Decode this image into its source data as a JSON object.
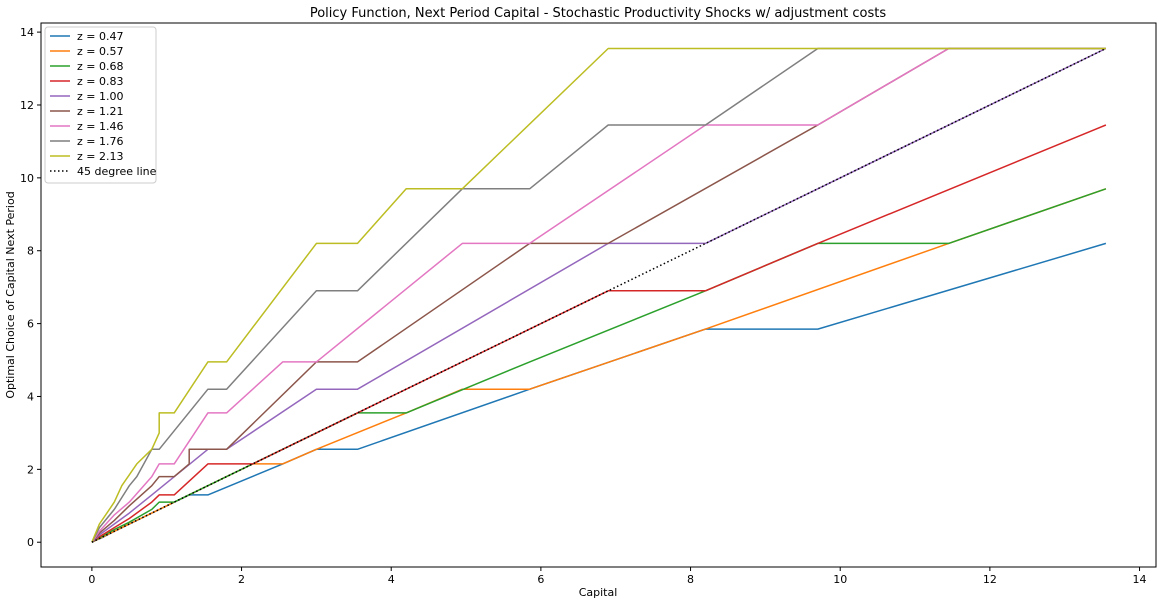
{
  "chart_data": {
    "type": "line",
    "title": "Policy Function, Next Period Capital - Stochastic Productivity Shocks w/ adjustment costs",
    "xlabel": "Capital",
    "ylabel": "Optimal Choice of Capital Next Period",
    "xlim": [
      -0.68,
      14.22
    ],
    "ylim": [
      -0.68,
      14.25
    ],
    "xticks": [
      0,
      2,
      4,
      6,
      8,
      10,
      12,
      14
    ],
    "yticks": [
      0,
      2,
      4,
      6,
      8,
      10,
      12,
      14
    ],
    "grid": false,
    "legend_position": "top-left",
    "series": [
      {
        "name": "z = 0.47",
        "color": "#1f77b4",
        "style": "solid",
        "points": [
          [
            0,
            0
          ],
          [
            0.06,
            0.06
          ],
          [
            0.14,
            0.13
          ],
          [
            0.3,
            0.3
          ],
          [
            0.45,
            0.45
          ],
          [
            0.6,
            0.6
          ],
          [
            0.8,
            0.8
          ],
          [
            1.3,
            1.3
          ],
          [
            1.55,
            1.3
          ],
          [
            2.55,
            2.15
          ],
          [
            3.0,
            2.55
          ],
          [
            3.55,
            2.55
          ],
          [
            5.85,
            4.2
          ],
          [
            8.2,
            5.85
          ],
          [
            9.7,
            5.85
          ],
          [
            13.55,
            8.2
          ]
        ]
      },
      {
        "name": "z = 0.57",
        "color": "#ff7f0e",
        "style": "solid",
        "points": [
          [
            0,
            0
          ],
          [
            0.1,
            0.1
          ],
          [
            0.3,
            0.3
          ],
          [
            0.5,
            0.5
          ],
          [
            0.8,
            0.8
          ],
          [
            1.55,
            1.55
          ],
          [
            1.8,
            1.8
          ],
          [
            2.15,
            2.15
          ],
          [
            2.55,
            2.15
          ],
          [
            3.0,
            2.55
          ],
          [
            4.2,
            3.55
          ],
          [
            4.95,
            4.2
          ],
          [
            5.85,
            4.2
          ],
          [
            8.2,
            5.85
          ],
          [
            11.45,
            8.2
          ],
          [
            13.55,
            9.7
          ]
        ]
      },
      {
        "name": "z = 0.68",
        "color": "#2ca02c",
        "style": "solid",
        "points": [
          [
            0,
            0
          ],
          [
            0.1,
            0.12
          ],
          [
            0.3,
            0.35
          ],
          [
            0.5,
            0.55
          ],
          [
            0.8,
            0.9
          ],
          [
            0.9,
            1.1
          ],
          [
            1.1,
            1.1
          ],
          [
            1.8,
            1.8
          ],
          [
            3.55,
            3.55
          ],
          [
            4.2,
            3.55
          ],
          [
            5.85,
            4.95
          ],
          [
            8.2,
            6.9
          ],
          [
            9.7,
            8.2
          ],
          [
            11.45,
            8.2
          ],
          [
            13.55,
            9.7
          ]
        ]
      },
      {
        "name": "z = 0.83",
        "color": "#d62728",
        "style": "solid",
        "points": [
          [
            0,
            0
          ],
          [
            0.1,
            0.15
          ],
          [
            0.3,
            0.4
          ],
          [
            0.5,
            0.65
          ],
          [
            0.8,
            1.1
          ],
          [
            0.9,
            1.3
          ],
          [
            1.1,
            1.3
          ],
          [
            1.55,
            2.15
          ],
          [
            1.8,
            2.15
          ],
          [
            2.15,
            2.15
          ],
          [
            4.2,
            4.2
          ],
          [
            5.85,
            5.85
          ],
          [
            6.9,
            6.9
          ],
          [
            8.2,
            6.9
          ],
          [
            9.7,
            8.2
          ],
          [
            13.55,
            11.45
          ]
        ]
      },
      {
        "name": "z = 1.00",
        "color": "#9467bd",
        "style": "solid",
        "points": [
          [
            0,
            0
          ],
          [
            0.1,
            0.2
          ],
          [
            0.3,
            0.5
          ],
          [
            0.5,
            0.8
          ],
          [
            0.8,
            1.3
          ],
          [
            1.55,
            2.55
          ],
          [
            1.8,
            2.55
          ],
          [
            3.0,
            4.2
          ],
          [
            3.55,
            4.2
          ],
          [
            6.9,
            8.2
          ],
          [
            8.2,
            8.2
          ],
          [
            9.7,
            9.7
          ],
          [
            13.55,
            13.55
          ]
        ]
      },
      {
        "name": "z = 1.21",
        "color": "#8c564b",
        "style": "solid",
        "points": [
          [
            0,
            0
          ],
          [
            0.1,
            0.25
          ],
          [
            0.3,
            0.6
          ],
          [
            0.5,
            1.0
          ],
          [
            0.8,
            1.55
          ],
          [
            0.9,
            1.8
          ],
          [
            1.1,
            1.8
          ],
          [
            1.3,
            2.15
          ],
          [
            1.3,
            2.55
          ],
          [
            1.8,
            2.55
          ],
          [
            3.0,
            4.95
          ],
          [
            3.55,
            4.95
          ],
          [
            5.85,
            8.2
          ],
          [
            6.9,
            8.2
          ],
          [
            9.7,
            11.45
          ],
          [
            11.45,
            13.55
          ],
          [
            13.55,
            13.55
          ]
        ]
      },
      {
        "name": "z = 1.46",
        "color": "#e377c2",
        "style": "solid",
        "points": [
          [
            0,
            0
          ],
          [
            0.1,
            0.3
          ],
          [
            0.3,
            0.75
          ],
          [
            0.5,
            1.1
          ],
          [
            0.8,
            1.8
          ],
          [
            0.9,
            2.15
          ],
          [
            1.1,
            2.15
          ],
          [
            1.55,
            3.55
          ],
          [
            1.8,
            3.55
          ],
          [
            2.55,
            4.95
          ],
          [
            3.0,
            4.95
          ],
          [
            4.95,
            8.2
          ],
          [
            5.85,
            8.2
          ],
          [
            8.2,
            11.45
          ],
          [
            9.7,
            11.45
          ],
          [
            11.45,
            13.55
          ],
          [
            13.55,
            13.55
          ]
        ]
      },
      {
        "name": "z = 1.76",
        "color": "#7f7f7f",
        "style": "solid",
        "points": [
          [
            0,
            0
          ],
          [
            0.1,
            0.4
          ],
          [
            0.3,
            0.9
          ],
          [
            0.5,
            1.55
          ],
          [
            0.6,
            1.8
          ],
          [
            0.8,
            2.55
          ],
          [
            0.9,
            2.55
          ],
          [
            1.55,
            4.2
          ],
          [
            1.8,
            4.2
          ],
          [
            3.0,
            6.9
          ],
          [
            3.55,
            6.9
          ],
          [
            4.95,
            9.7
          ],
          [
            5.85,
            9.7
          ],
          [
            6.9,
            11.45
          ],
          [
            8.2,
            11.45
          ],
          [
            9.7,
            13.55
          ],
          [
            13.55,
            13.55
          ]
        ]
      },
      {
        "name": "z = 2.13",
        "color": "#bcbd22",
        "style": "solid",
        "points": [
          [
            0,
            0
          ],
          [
            0.1,
            0.5
          ],
          [
            0.2,
            0.8
          ],
          [
            0.3,
            1.1
          ],
          [
            0.4,
            1.55
          ],
          [
            0.6,
            2.15
          ],
          [
            0.8,
            2.55
          ],
          [
            0.9,
            3.0
          ],
          [
            0.9,
            3.55
          ],
          [
            1.1,
            3.55
          ],
          [
            1.55,
            4.95
          ],
          [
            1.8,
            4.95
          ],
          [
            3.0,
            8.2
          ],
          [
            3.55,
            8.2
          ],
          [
            4.2,
            9.7
          ],
          [
            4.95,
            9.7
          ],
          [
            6.9,
            13.55
          ],
          [
            13.55,
            13.55
          ]
        ]
      },
      {
        "name": "45 degree line",
        "color": "#000000",
        "style": "dotted",
        "points": [
          [
            0,
            0
          ],
          [
            13.55,
            13.55
          ]
        ]
      }
    ]
  }
}
